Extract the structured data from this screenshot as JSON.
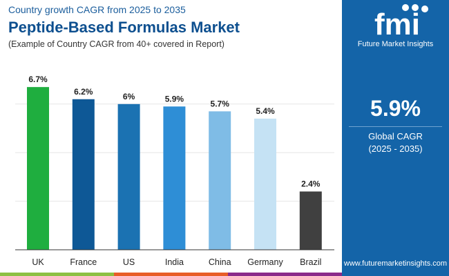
{
  "header": {
    "supertitle": "Country growth CAGR from 2025 to 2035",
    "title": "Peptide-Based Formulas Market",
    "subtitle": "(Example of Country CAGR from 40+ covered in Report)"
  },
  "panel": {
    "logo_text": "fmi",
    "brand": "Future Market Insights",
    "value": "5.9%",
    "label": "Global CAGR",
    "period": "(2025 - 2035)",
    "url": "www.futuremarketinsights.com"
  },
  "colors": {
    "panel": "#1464a8",
    "stripes": [
      "#8dc043",
      "#e85d27",
      "#8b2a8a"
    ]
  },
  "chart_data": {
    "type": "bar",
    "categories": [
      "UK",
      "France",
      "US",
      "India",
      "China",
      "Germany",
      "Brazil"
    ],
    "values": [
      6.7,
      6.2,
      6.0,
      5.9,
      5.7,
      5.4,
      2.4
    ],
    "labels": [
      "6.7%",
      "6.2%",
      "6%",
      "5.9%",
      "5.7%",
      "5.4%",
      "2.4%"
    ],
    "colors": [
      "#1fae3f",
      "#0e5896",
      "#1b72b2",
      "#2e8ed6",
      "#7fbce6",
      "#c5e2f4",
      "#404040"
    ],
    "ylim": [
      0,
      7
    ],
    "grid": true,
    "title": "",
    "xlabel": "",
    "ylabel": ""
  }
}
